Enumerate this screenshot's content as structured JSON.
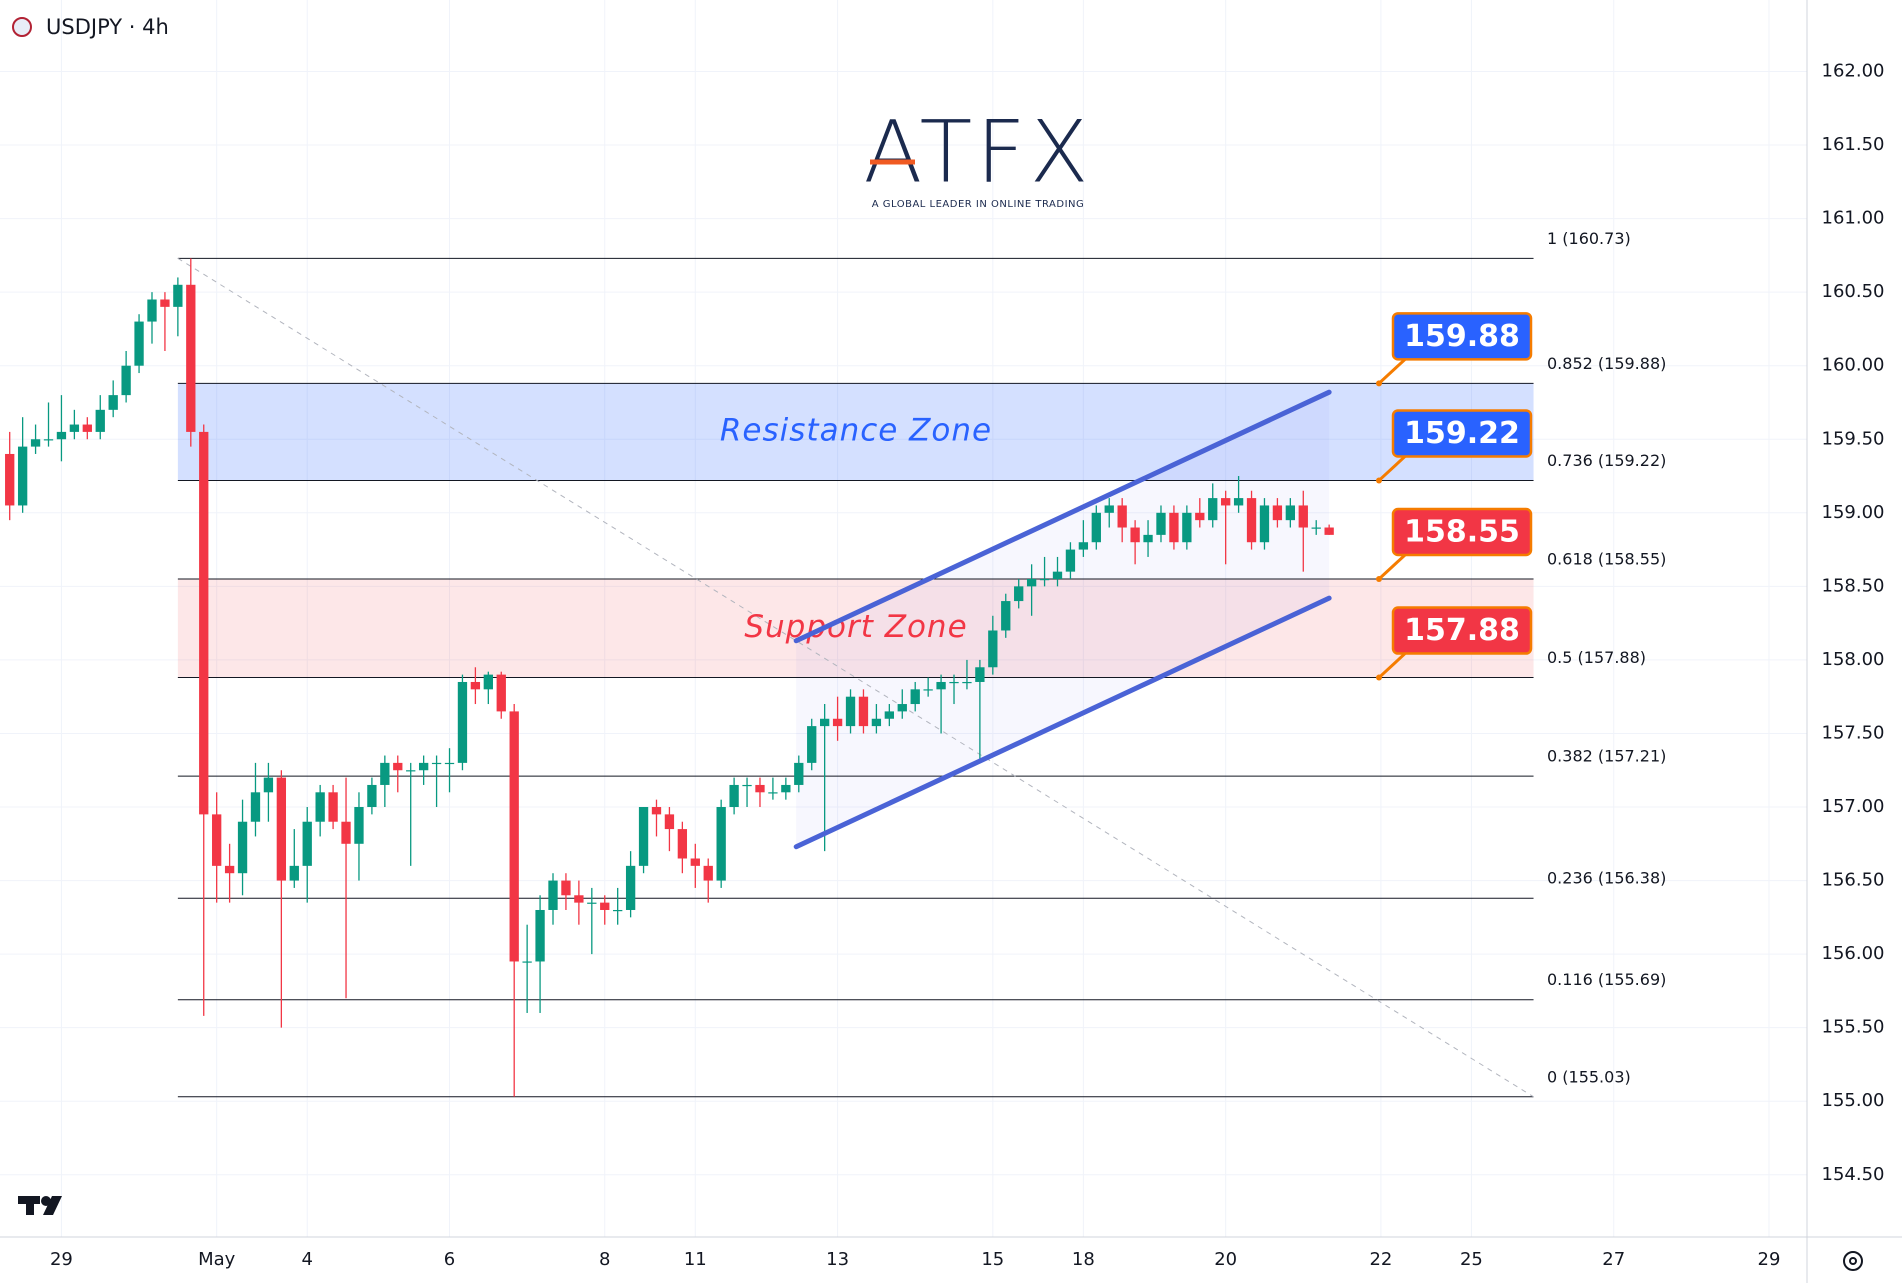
{
  "chart_data": {
    "type": "candlestick",
    "title": "USDJPY · 4h",
    "logo": "ATFX",
    "logo_tagline": "A GLOBAL LEADER IN ONLINE TRADING",
    "up_color": "#089981",
    "down_color": "#f23645",
    "grid": true,
    "ylim": [
      154.077,
      162.486
    ],
    "yticks": [
      {
        "value": 154.5,
        "label": "154.50"
      },
      {
        "value": 155,
        "label": "155.00"
      },
      {
        "value": 155.5,
        "label": "155.50"
      },
      {
        "value": 156,
        "label": "156.00"
      },
      {
        "value": 156.5,
        "label": "156.50"
      },
      {
        "value": 157,
        "label": "157.00"
      },
      {
        "value": 157.5,
        "label": "157.50"
      },
      {
        "value": 158,
        "label": "158.00"
      },
      {
        "value": 158.5,
        "label": "158.50"
      },
      {
        "value": 159,
        "label": "159.00"
      },
      {
        "value": 159.5,
        "label": "159.50"
      },
      {
        "value": 160,
        "label": "160.00"
      },
      {
        "value": 160.5,
        "label": "160.50"
      },
      {
        "value": 161,
        "label": "161.00"
      },
      {
        "value": 161.5,
        "label": "161.50"
      },
      {
        "value": 162,
        "label": "162.00"
      }
    ],
    "xlim": [
      -0.75,
      138.94
    ],
    "xticks": [
      {
        "value": 4,
        "label": "29"
      },
      {
        "value": 16,
        "label": "May"
      },
      {
        "value": 23,
        "label": "4"
      },
      {
        "value": 34,
        "label": "6"
      },
      {
        "value": 46,
        "label": "8"
      },
      {
        "value": 53,
        "label": "11"
      },
      {
        "value": 64,
        "label": "13"
      },
      {
        "value": 76,
        "label": "15"
      },
      {
        "value": 83,
        "label": "18"
      },
      {
        "value": 94,
        "label": "20"
      },
      {
        "value": 106,
        "label": "22"
      },
      {
        "value": 113,
        "label": "25"
      },
      {
        "value": 124,
        "label": "27"
      },
      {
        "value": 136,
        "label": "29"
      }
    ],
    "candles": {
      "open": [
        159.4,
        159.05,
        159.45,
        159.5,
        159.5,
        159.55,
        159.6,
        159.55,
        159.7,
        159.8,
        160.0,
        160.3,
        160.45,
        160.4,
        160.55,
        159.55,
        156.95,
        156.6,
        156.55,
        156.9,
        157.1,
        157.2,
        156.5,
        156.6,
        156.9,
        157.1,
        156.9,
        156.75,
        157.0,
        157.15,
        157.3,
        157.25,
        157.25,
        157.3,
        157.3,
        157.3,
        157.85,
        157.8,
        157.9,
        157.65,
        155.95,
        155.95,
        156.3,
        156.5,
        156.4,
        156.35,
        156.35,
        156.3,
        156.3,
        156.6,
        157.0,
        156.95,
        156.85,
        156.65,
        156.6,
        156.5,
        157.0,
        157.15,
        157.15,
        157.1,
        157.1,
        157.15,
        157.3,
        157.55,
        157.6,
        157.55,
        157.75,
        157.55,
        157.6,
        157.65,
        157.7,
        157.8,
        157.8,
        157.85,
        157.85,
        157.85,
        157.95,
        158.2,
        158.4,
        158.5,
        158.55,
        158.55,
        158.6,
        158.75,
        158.8,
        159.0,
        159.05,
        158.9,
        158.8,
        158.85,
        159.0,
        158.8,
        159.0,
        158.95,
        159.1,
        159.05,
        159.1,
        158.8,
        159.05,
        158.95,
        159.05,
        158.9,
        158.9
      ],
      "high": [
        159.55,
        159.65,
        159.6,
        159.75,
        159.8,
        159.7,
        159.65,
        159.8,
        159.9,
        160.1,
        160.35,
        160.5,
        160.5,
        160.6,
        160.73,
        159.6,
        157.1,
        156.75,
        157.05,
        157.3,
        157.3,
        157.25,
        156.85,
        157.0,
        157.15,
        157.15,
        157.2,
        157.1,
        157.2,
        157.35,
        157.35,
        157.3,
        157.35,
        157.35,
        157.4,
        157.9,
        157.95,
        157.92,
        157.92,
        157.7,
        156.2,
        156.4,
        156.55,
        156.55,
        156.5,
        156.45,
        156.4,
        156.45,
        156.7,
        157.0,
        157.05,
        157.0,
        156.9,
        156.75,
        156.65,
        157.05,
        157.2,
        157.2,
        157.2,
        157.2,
        157.2,
        157.35,
        157.6,
        157.7,
        157.75,
        157.8,
        157.8,
        157.7,
        157.7,
        157.8,
        157.85,
        157.88,
        157.9,
        157.9,
        158.0,
        158.0,
        158.3,
        158.45,
        158.55,
        158.65,
        158.7,
        158.7,
        158.8,
        158.95,
        159.05,
        159.1,
        159.1,
        158.95,
        158.95,
        159.05,
        159.05,
        159.05,
        159.1,
        159.2,
        159.15,
        159.25,
        159.15,
        159.1,
        159.1,
        159.1,
        159.15,
        158.95,
        158.92
      ],
      "low": [
        158.95,
        159.0,
        159.4,
        159.45,
        159.35,
        159.5,
        159.5,
        159.5,
        159.65,
        159.75,
        159.95,
        160.15,
        160.1,
        160.2,
        159.45,
        155.58,
        156.35,
        156.35,
        156.4,
        156.8,
        156.9,
        155.5,
        156.45,
        156.35,
        156.8,
        156.85,
        155.7,
        156.5,
        156.95,
        157.0,
        157.1,
        156.6,
        157.15,
        157.0,
        157.1,
        157.25,
        157.7,
        157.7,
        157.6,
        155.03,
        155.6,
        155.6,
        156.2,
        156.3,
        156.2,
        156.0,
        156.2,
        156.2,
        156.25,
        156.55,
        156.8,
        156.7,
        156.55,
        156.45,
        156.35,
        156.45,
        156.95,
        157.0,
        157.0,
        157.05,
        157.05,
        157.1,
        157.25,
        156.7,
        157.45,
        157.5,
        157.5,
        157.5,
        157.55,
        157.6,
        157.65,
        157.75,
        157.5,
        157.7,
        157.8,
        157.3,
        157.9,
        158.15,
        158.35,
        158.3,
        158.5,
        158.5,
        158.55,
        158.7,
        158.75,
        158.9,
        158.8,
        158.65,
        158.7,
        158.8,
        158.75,
        158.75,
        158.9,
        158.9,
        158.65,
        159.0,
        158.75,
        158.75,
        158.9,
        158.9,
        158.6,
        158.85,
        158.85
      ],
      "close": [
        159.05,
        159.45,
        159.5,
        159.5,
        159.55,
        159.6,
        159.55,
        159.7,
        159.8,
        160.0,
        160.3,
        160.45,
        160.4,
        160.55,
        159.55,
        156.95,
        156.6,
        156.55,
        156.9,
        157.1,
        157.2,
        156.5,
        156.6,
        156.9,
        157.1,
        156.9,
        156.75,
        157.0,
        157.15,
        157.3,
        157.25,
        157.25,
        157.3,
        157.3,
        157.3,
        157.85,
        157.8,
        157.9,
        157.65,
        155.95,
        155.95,
        156.3,
        156.5,
        156.4,
        156.35,
        156.35,
        156.3,
        156.3,
        156.6,
        157.0,
        156.95,
        156.85,
        156.65,
        156.6,
        156.5,
        157.0,
        157.15,
        157.15,
        157.1,
        157.1,
        157.15,
        157.3,
        157.55,
        157.6,
        157.55,
        157.75,
        157.55,
        157.6,
        157.65,
        157.7,
        157.8,
        157.8,
        157.85,
        157.85,
        157.85,
        157.95,
        158.2,
        158.4,
        158.5,
        158.55,
        158.55,
        158.6,
        158.75,
        158.8,
        159.0,
        159.05,
        158.9,
        158.8,
        158.85,
        159.0,
        158.8,
        159.0,
        158.95,
        159.1,
        159.05,
        159.1,
        158.8,
        159.05,
        158.95,
        159.05,
        158.9,
        158.9,
        158.85
      ]
    },
    "fib_x": [
      13,
      117.8
    ],
    "fib_levels": [
      {
        "value": 160.73,
        "label": "1 (160.73)"
      },
      {
        "value": 159.88,
        "label": "0.852 (159.88)"
      },
      {
        "value": 159.22,
        "label": "0.736 (159.22)"
      },
      {
        "value": 158.55,
        "label": "0.618 (158.55)"
      },
      {
        "value": 157.88,
        "label": "0.5 (157.88)"
      },
      {
        "value": 157.21,
        "label": "0.382 (157.21)"
      },
      {
        "value": 156.38,
        "label": "0.236 (156.38)"
      },
      {
        "value": 155.69,
        "label": "0.116 (155.69)"
      },
      {
        "value": 155.03,
        "label": "0 (155.03)"
      }
    ],
    "zones": [
      {
        "label": "Resistance Zone",
        "from": 159.22,
        "to": 159.88,
        "fill": "rgba(41,98,255,0.2)",
        "text_color": "#2962ff"
      },
      {
        "label": "Support Zone",
        "from": 157.88,
        "to": 158.55,
        "fill": "rgba(242,54,69,0.12)",
        "text_color": "#f23645"
      }
    ],
    "channel": {
      "x": [
        60.8,
        102
      ],
      "upper": [
        158.13,
        159.82
      ],
      "lower": [
        156.73,
        158.42
      ],
      "color": "#4a63d6"
    },
    "callouts": [
      {
        "value": 159.88,
        "color": "#2962ff"
      },
      {
        "value": 159.22,
        "color": "#2962ff"
      },
      {
        "value": 158.55,
        "color": "#f23645"
      },
      {
        "value": 157.88,
        "color": "#f23645"
      }
    ]
  }
}
